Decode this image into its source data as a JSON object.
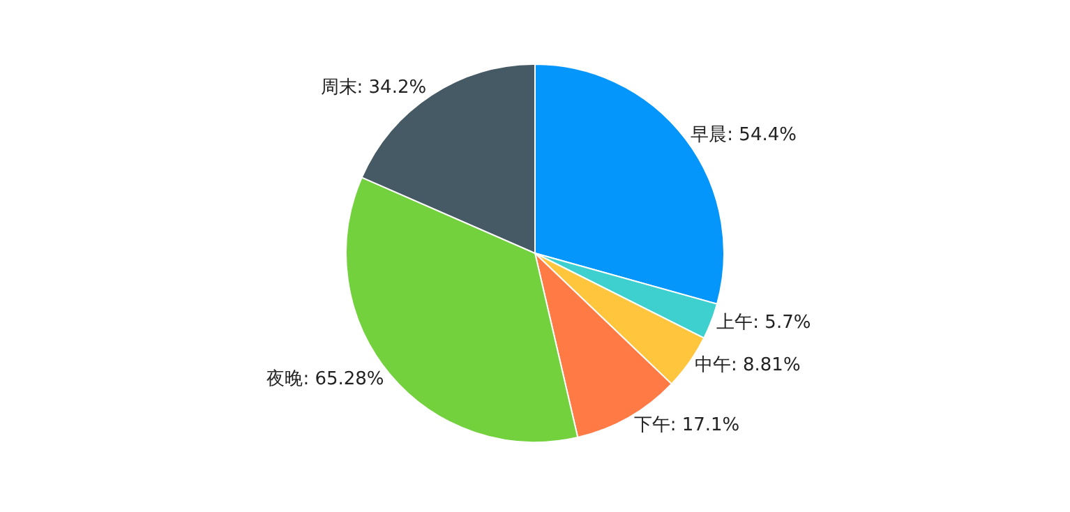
{
  "chart_data": {
    "type": "pie",
    "categories": [
      "早晨",
      "上午",
      "中午",
      "下午",
      "夜晚",
      "周末"
    ],
    "values": [
      54.4,
      5.7,
      8.81,
      17.1,
      65.28,
      34.2
    ],
    "value_labels": [
      "54.4%",
      "5.7%",
      "8.81%",
      "17.1%",
      "65.28%",
      "34.2%"
    ],
    "colors": [
      "#0596fc",
      "#3ecfcf",
      "#ffc53d",
      "#ff7a45",
      "#73d13d",
      "#465a65"
    ],
    "legend": false
  }
}
